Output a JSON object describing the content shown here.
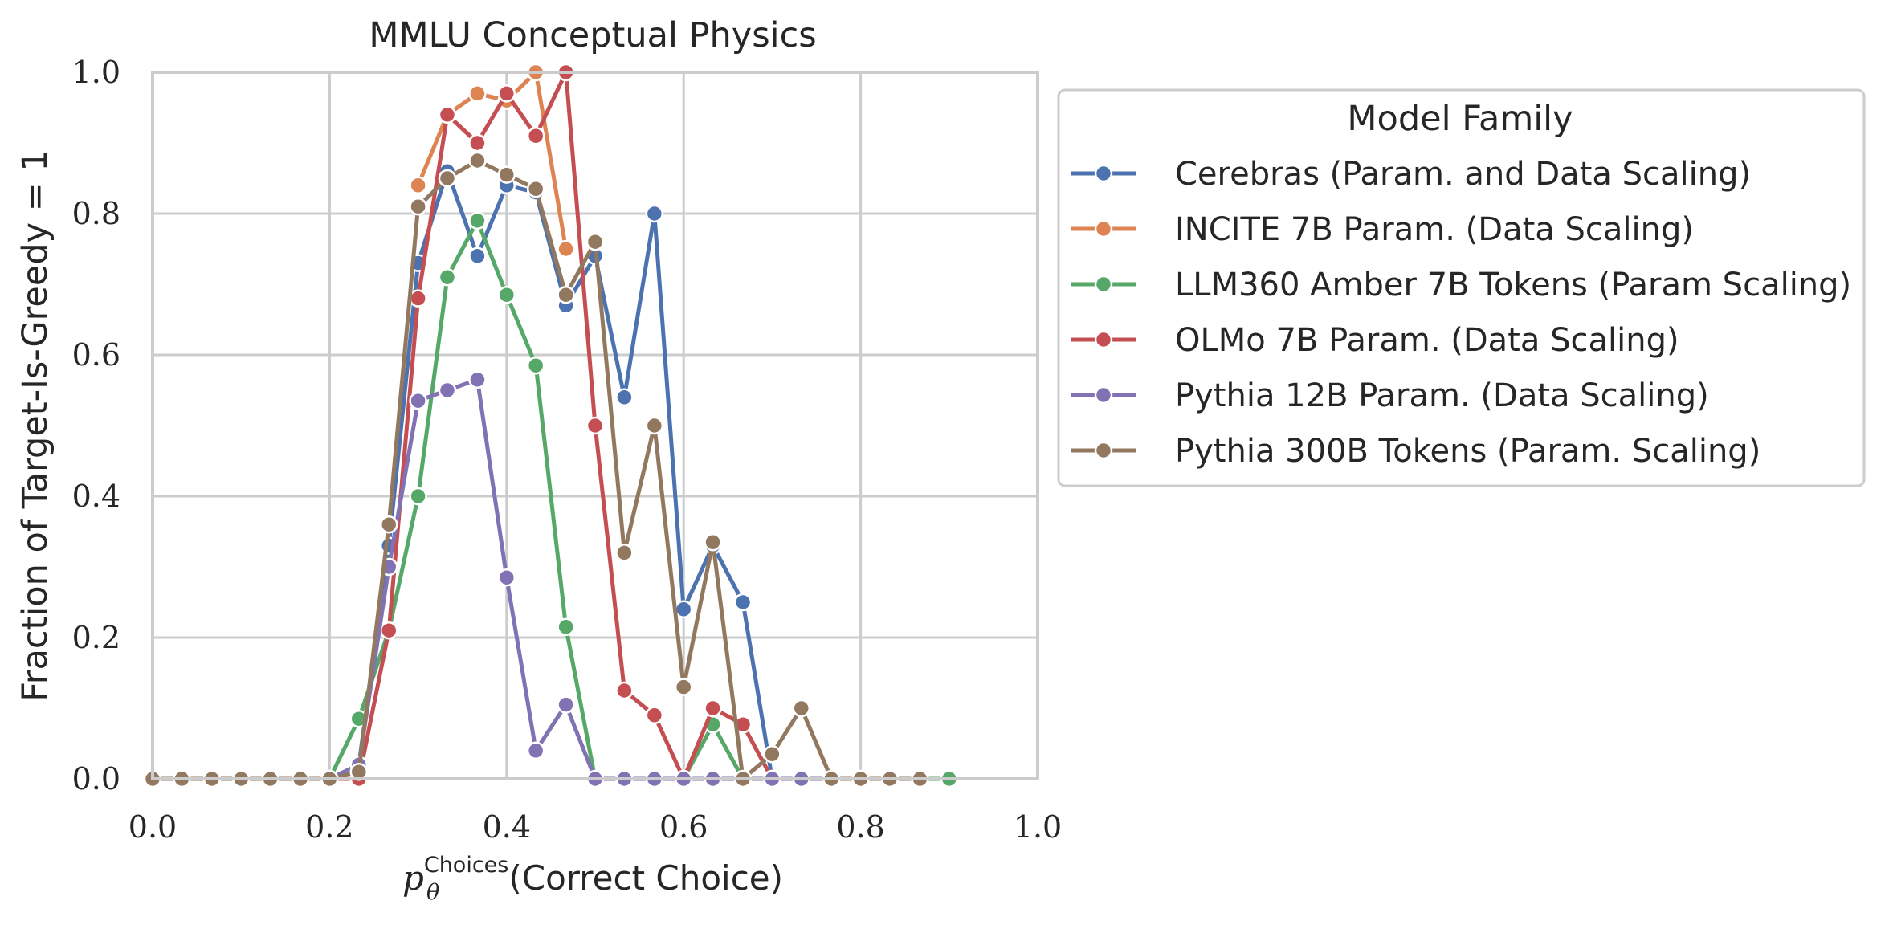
{
  "chart_data": {
    "type": "line",
    "title": "MMLU Conceptual Physics",
    "xlabel": {
      "symbol": "p",
      "subscript": "θ",
      "superscript": "Choices",
      "text": "(Correct Choice)"
    },
    "ylabel": "Fraction of Target-Is-Greedy = 1",
    "xlim": [
      0.0,
      1.0
    ],
    "ylim": [
      0.0,
      1.0
    ],
    "xticks": [
      "0.0",
      "0.2",
      "0.4",
      "0.6",
      "0.8",
      "1.0"
    ],
    "yticks": [
      "0.0",
      "0.2",
      "0.4",
      "0.6",
      "0.8",
      "1.0"
    ],
    "grid": true,
    "legend": {
      "title": "Model Family",
      "placement": "outside-right-top"
    },
    "series": [
      {
        "name": "Cerebras (Param. and Data Scaling)",
        "color": "#4c72b0",
        "points": [
          [
            0.0,
            0.0
          ],
          [
            0.033,
            0.0
          ],
          [
            0.067,
            0.0
          ],
          [
            0.1,
            0.0
          ],
          [
            0.133,
            0.0
          ],
          [
            0.167,
            0.0
          ],
          [
            0.2,
            0.0
          ],
          [
            0.233,
            0.02
          ],
          [
            0.267,
            0.33
          ],
          [
            0.3,
            0.73
          ],
          [
            0.333,
            0.86
          ],
          [
            0.367,
            0.74
          ],
          [
            0.4,
            0.84
          ],
          [
            0.433,
            0.83
          ],
          [
            0.467,
            0.67
          ],
          [
            0.5,
            0.74
          ],
          [
            0.533,
            0.54
          ],
          [
            0.567,
            0.8
          ],
          [
            0.6,
            0.24
          ],
          [
            0.633,
            0.33
          ],
          [
            0.667,
            0.25
          ],
          [
            0.7,
            0.0
          ],
          [
            0.733,
            0.0
          ],
          [
            0.767,
            0.0
          ],
          [
            0.8,
            0.0
          ],
          [
            0.833,
            0.0
          ],
          [
            0.867,
            0.0
          ]
        ]
      },
      {
        "name": "INCITE 7B Param. (Data Scaling)",
        "color": "#dd8452",
        "points": [
          [
            0.3,
            0.84
          ],
          [
            0.333,
            0.94
          ],
          [
            0.367,
            0.97
          ],
          [
            0.4,
            0.96
          ],
          [
            0.433,
            1.0
          ],
          [
            0.467,
            0.75
          ]
        ]
      },
      {
        "name": "LLM360 Amber 7B Tokens (Param Scaling)",
        "color": "#55a868",
        "points": [
          [
            0.0,
            0.0
          ],
          [
            0.033,
            0.0
          ],
          [
            0.067,
            0.0
          ],
          [
            0.1,
            0.0
          ],
          [
            0.133,
            0.0
          ],
          [
            0.167,
            0.0
          ],
          [
            0.2,
            0.0
          ],
          [
            0.233,
            0.085
          ],
          [
            0.267,
            0.21
          ],
          [
            0.3,
            0.4
          ],
          [
            0.333,
            0.71
          ],
          [
            0.367,
            0.79
          ],
          [
            0.4,
            0.685
          ],
          [
            0.433,
            0.585
          ],
          [
            0.467,
            0.215
          ],
          [
            0.5,
            0.0
          ],
          [
            0.533,
            0.0
          ],
          [
            0.567,
            0.0
          ],
          [
            0.6,
            0.0
          ],
          [
            0.633,
            0.077
          ],
          [
            0.667,
            0.0
          ],
          [
            0.7,
            0.0
          ],
          [
            0.733,
            0.0
          ],
          [
            0.767,
            0.0
          ],
          [
            0.8,
            0.0
          ],
          [
            0.833,
            0.0
          ],
          [
            0.867,
            0.0
          ],
          [
            0.9,
            0.0
          ]
        ]
      },
      {
        "name": "OLMo 7B Param. (Data Scaling)",
        "color": "#c44e52",
        "points": [
          [
            0.0,
            0.0
          ],
          [
            0.033,
            0.0
          ],
          [
            0.067,
            0.0
          ],
          [
            0.1,
            0.0
          ],
          [
            0.133,
            0.0
          ],
          [
            0.167,
            0.0
          ],
          [
            0.2,
            0.0
          ],
          [
            0.233,
            0.0
          ],
          [
            0.267,
            0.21
          ],
          [
            0.3,
            0.68
          ],
          [
            0.333,
            0.94
          ],
          [
            0.367,
            0.9
          ],
          [
            0.4,
            0.97
          ],
          [
            0.433,
            0.91
          ],
          [
            0.467,
            1.0
          ],
          [
            0.5,
            0.5
          ],
          [
            0.533,
            0.125
          ],
          [
            0.567,
            0.09
          ],
          [
            0.6,
            0.0
          ],
          [
            0.633,
            0.1
          ],
          [
            0.667,
            0.077
          ],
          [
            0.7,
            0.0
          ],
          [
            0.733,
            0.0
          ],
          [
            0.767,
            0.0
          ],
          [
            0.8,
            0.0
          ],
          [
            0.833,
            0.0
          ],
          [
            0.867,
            0.0
          ]
        ]
      },
      {
        "name": "Pythia 12B Param. (Data Scaling)",
        "color": "#8172b3",
        "points": [
          [
            0.0,
            0.0
          ],
          [
            0.033,
            0.0
          ],
          [
            0.067,
            0.0
          ],
          [
            0.1,
            0.0
          ],
          [
            0.133,
            0.0
          ],
          [
            0.167,
            0.0
          ],
          [
            0.2,
            0.0
          ],
          [
            0.233,
            0.02
          ],
          [
            0.267,
            0.3
          ],
          [
            0.3,
            0.535
          ],
          [
            0.333,
            0.55
          ],
          [
            0.367,
            0.565
          ],
          [
            0.4,
            0.285
          ],
          [
            0.433,
            0.04
          ],
          [
            0.467,
            0.105
          ],
          [
            0.5,
            0.0
          ],
          [
            0.533,
            0.0
          ],
          [
            0.567,
            0.0
          ],
          [
            0.6,
            0.0
          ],
          [
            0.633,
            0.0
          ],
          [
            0.667,
            0.0
          ],
          [
            0.7,
            0.0
          ],
          [
            0.733,
            0.0
          ],
          [
            0.767,
            0.0
          ],
          [
            0.8,
            0.0
          ],
          [
            0.833,
            0.0
          ],
          [
            0.867,
            0.0
          ]
        ]
      },
      {
        "name": "Pythia 300B Tokens (Param. Scaling)",
        "color": "#937860",
        "points": [
          [
            0.0,
            0.0
          ],
          [
            0.033,
            0.0
          ],
          [
            0.067,
            0.0
          ],
          [
            0.1,
            0.0
          ],
          [
            0.133,
            0.0
          ],
          [
            0.167,
            0.0
          ],
          [
            0.2,
            0.0
          ],
          [
            0.233,
            0.01
          ],
          [
            0.267,
            0.36
          ],
          [
            0.3,
            0.81
          ],
          [
            0.333,
            0.85
          ],
          [
            0.367,
            0.875
          ],
          [
            0.4,
            0.855
          ],
          [
            0.433,
            0.835
          ],
          [
            0.467,
            0.685
          ],
          [
            0.5,
            0.76
          ],
          [
            0.533,
            0.32
          ],
          [
            0.567,
            0.5
          ],
          [
            0.6,
            0.13
          ],
          [
            0.633,
            0.335
          ],
          [
            0.667,
            0.0
          ],
          [
            0.7,
            0.035
          ],
          [
            0.733,
            0.1
          ],
          [
            0.767,
            0.0
          ],
          [
            0.8,
            0.0
          ],
          [
            0.833,
            0.0
          ],
          [
            0.867,
            0.0
          ]
        ]
      }
    ]
  }
}
